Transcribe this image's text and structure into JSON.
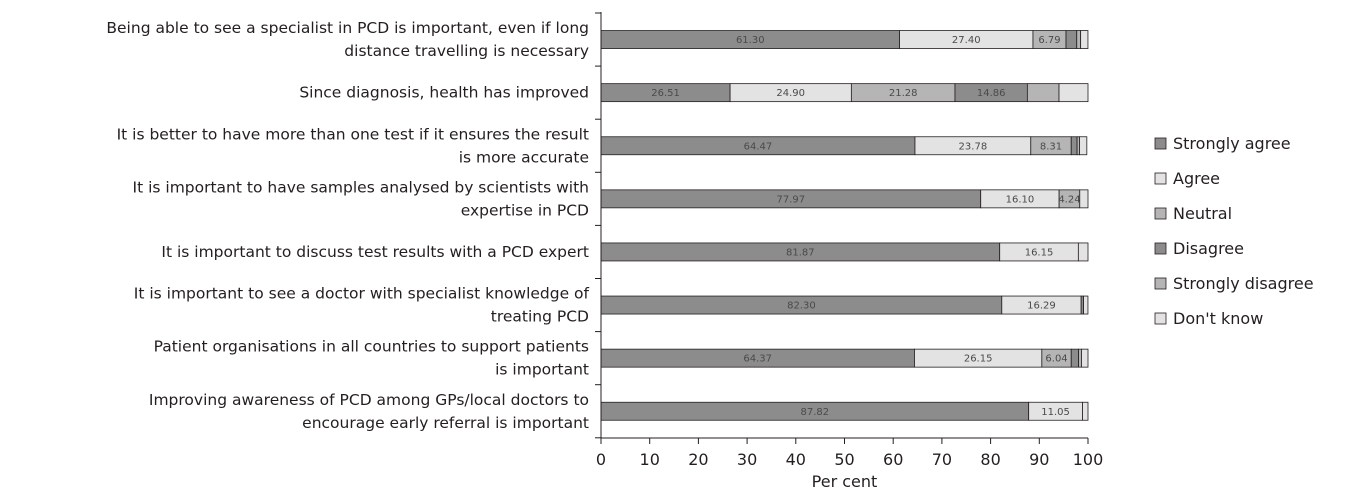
{
  "chart_data": {
    "type": "bar",
    "orientation": "horizontal",
    "stacked": true,
    "xlabel": "Per cent",
    "ylabel": "",
    "xlim": [
      0,
      100
    ],
    "xticks": [
      "0",
      "10",
      "20",
      "30",
      "40",
      "50",
      "60",
      "70",
      "80",
      "90",
      "100"
    ],
    "grid": false,
    "legend_position": "right",
    "categories": [
      [
        "Being able to see a specialist in PCD is important, even if long",
        "distance travelling is necessary"
      ],
      [
        "Since diagnosis, health has improved"
      ],
      [
        "It is better to have more than one test if it ensures the result",
        "is more accurate"
      ],
      [
        "It is important  to have samples analysed by scientists with",
        "expertise in PCD"
      ],
      [
        "It is important to discuss test results with a PCD expert"
      ],
      [
        "It is important to see a doctor with specialist knowledge of",
        "treating PCD"
      ],
      [
        "Patient organisations in all countries to support patients",
        "is important"
      ],
      [
        "Improving awareness of PCD among GPs/local doctors to",
        "encourage early referral is important"
      ]
    ],
    "series": [
      {
        "name": "Strongly agree",
        "color": "#8c8c8c",
        "values": [
          61.3,
          26.51,
          64.47,
          77.97,
          81.87,
          82.3,
          64.37,
          87.82
        ]
      },
      {
        "name": "Agree",
        "color": "#e3e3e3",
        "values": [
          27.4,
          24.9,
          23.78,
          16.1,
          16.15,
          16.29,
          26.15,
          11.05
        ]
      },
      {
        "name": "Neutral",
        "color": "#b5b5b5",
        "values": [
          6.79,
          21.28,
          8.31,
          4.24,
          0.0,
          0.0,
          6.04,
          0.0
        ]
      },
      {
        "name": "Disagree",
        "color": "#8c8c8c",
        "values": [
          2.2,
          14.86,
          1.2,
          0.0,
          0.0,
          0.5,
          1.5,
          0.0
        ]
      },
      {
        "name": "Strongly disagree",
        "color": "#b5b5b5",
        "values": [
          0.8,
          6.5,
          0.5,
          0.0,
          0.0,
          0.0,
          0.6,
          0.0
        ]
      },
      {
        "name": "Don't know",
        "color": "#e3e3e3",
        "values": [
          1.5,
          5.95,
          1.5,
          1.69,
          1.98,
          0.9,
          1.34,
          1.13
        ]
      }
    ],
    "data_labels": [
      [
        "61.30",
        "27.40",
        "6.79",
        "",
        "",
        ""
      ],
      [
        "26.51",
        "24.90",
        "21.28",
        "14.86",
        "",
        ""
      ],
      [
        "64.47",
        "23.78",
        "8.31",
        "",
        "",
        ""
      ],
      [
        "77.97",
        "16.10",
        "4.24",
        "",
        "",
        ""
      ],
      [
        "81.87",
        "16.15",
        "",
        "",
        "",
        ""
      ],
      [
        "82.30",
        "16.29",
        "",
        "",
        "",
        ""
      ],
      [
        "64.37",
        "26.15",
        "6.04",
        "",
        "",
        ""
      ],
      [
        "87.82",
        "11.05",
        "",
        "",
        "",
        ""
      ]
    ]
  }
}
